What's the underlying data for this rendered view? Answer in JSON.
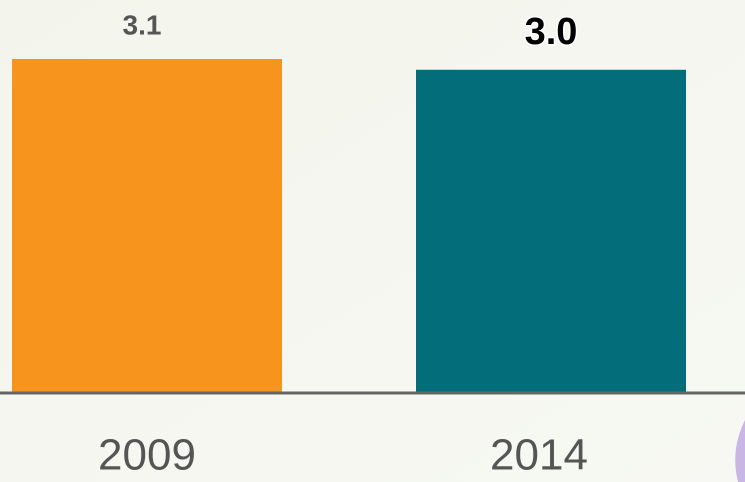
{
  "chart_data": {
    "type": "bar",
    "categories": [
      "2009",
      "2014"
    ],
    "values": [
      3.1,
      3.0
    ],
    "value_labels": [
      "3.1",
      "3.0"
    ],
    "colors": [
      "#f7941d",
      "#036e7a"
    ]
  }
}
